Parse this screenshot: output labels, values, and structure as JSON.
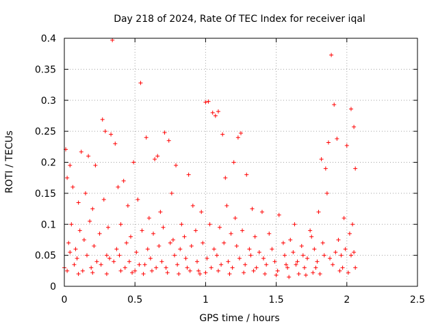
{
  "chart_data": {
    "type": "scatter",
    "title": "Day 218 of 2024, Rate Of TEC Index for receiver iqal",
    "xlabel": "GPS time / hours",
    "ylabel": "ROTI / TECUs",
    "xlim": [
      0,
      2.5
    ],
    "ylim": [
      0,
      0.4
    ],
    "xticks": [
      0,
      0.5,
      1,
      1.5,
      2,
      2.5
    ],
    "xtick_labels": [
      "0",
      "0.5",
      "1",
      "1.5",
      "2",
      "2.5"
    ],
    "yticks": [
      0,
      0.05,
      0.1,
      0.15,
      0.2,
      0.25,
      0.3,
      0.35,
      0.4
    ],
    "ytick_labels": [
      "0",
      "0.05",
      "0.1",
      "0.15",
      "0.2",
      "0.25",
      "0.3",
      "0.35",
      "0.4"
    ],
    "grid": true,
    "marker": "plus",
    "color": "#ff0000",
    "series": [
      {
        "name": "ROTI",
        "x": [
          0.34,
          0.54,
          1.0,
          1.02,
          1.05,
          1.07,
          1.09,
          1.89,
          1.91,
          2.03,
          0.27,
          0.29,
          0.33,
          0.36,
          0.58,
          0.66,
          0.71,
          0.74,
          1.12,
          1.23,
          1.25,
          1.87,
          1.93,
          2.05,
          0.01,
          0.04,
          0.12,
          0.17,
          0.22,
          0.42,
          0.49,
          0.64,
          0.79,
          0.88,
          1.14,
          1.2,
          1.29,
          1.82,
          1.85,
          2.0,
          2.06,
          0.02,
          0.06,
          0.1,
          0.15,
          0.2,
          0.28,
          0.38,
          0.45,
          0.52,
          0.6,
          0.68,
          0.76,
          0.83,
          0.91,
          0.97,
          1.15,
          1.21,
          1.33,
          1.4,
          1.52,
          1.63,
          1.74,
          1.8,
          1.86,
          1.98,
          2.04,
          0.05,
          0.11,
          0.18,
          0.25,
          0.31,
          0.4,
          0.47,
          0.55,
          0.63,
          0.7,
          0.77,
          0.85,
          0.93,
          1.03,
          1.1,
          1.18,
          1.26,
          1.35,
          1.45,
          1.55,
          1.6,
          1.68,
          1.75,
          1.83,
          1.94,
          2.02,
          0.03,
          0.08,
          0.14,
          0.21,
          0.3,
          0.37,
          0.44,
          0.51,
          0.59,
          0.67,
          0.75,
          0.82,
          0.9,
          0.98,
          1.06,
          1.13,
          1.22,
          1.31,
          1.38,
          1.47,
          1.56,
          1.62,
          1.69,
          1.77,
          1.84,
          1.92,
          1.99,
          2.05,
          0.04,
          0.09,
          0.16,
          0.23,
          0.32,
          0.39,
          0.46,
          0.53,
          0.61,
          0.69,
          0.78,
          0.86,
          0.94,
          1.01,
          1.08,
          1.16,
          1.24,
          1.32,
          1.41,
          1.49,
          1.57,
          1.65,
          1.72,
          1.79,
          1.88,
          1.96,
          2.03,
          0.0,
          0.07,
          0.13,
          0.19,
          0.26,
          0.35,
          0.43,
          0.5,
          0.57,
          0.65,
          0.72,
          0.8,
          0.87,
          0.95,
          1.04,
          1.11,
          1.19,
          1.28,
          1.36,
          1.43,
          1.51,
          1.58,
          1.64,
          1.7,
          1.78,
          1.9,
          1.97,
          2.06,
          0.02,
          0.1,
          0.2,
          0.3,
          0.4,
          0.48,
          0.56,
          0.62,
          0.73,
          0.81,
          0.89,
          0.96,
          1.0,
          1.09,
          1.17,
          1.27,
          1.34,
          1.42,
          1.5,
          1.59,
          1.66,
          1.71,
          1.76,
          1.81,
          1.95,
          2.01
        ],
        "y": [
          0.397,
          0.328,
          0.297,
          0.298,
          0.28,
          0.275,
          0.282,
          0.373,
          0.293,
          0.286,
          0.269,
          0.25,
          0.245,
          0.23,
          0.24,
          0.21,
          0.248,
          0.235,
          0.245,
          0.24,
          0.247,
          0.232,
          0.238,
          0.257,
          0.221,
          0.195,
          0.217,
          0.21,
          0.195,
          0.17,
          0.2,
          0.205,
          0.195,
          0.18,
          0.175,
          0.2,
          0.18,
          0.205,
          0.19,
          0.227,
          0.19,
          0.175,
          0.16,
          0.135,
          0.15,
          0.125,
          0.14,
          0.16,
          0.13,
          0.14,
          0.11,
          0.12,
          0.15,
          0.1,
          0.13,
          0.12,
          0.13,
          0.11,
          0.125,
          0.12,
          0.115,
          0.1,
          0.09,
          0.12,
          0.15,
          0.11,
          0.1,
          0.1,
          0.09,
          0.105,
          0.085,
          0.095,
          0.1,
          0.08,
          0.09,
          0.085,
          0.095,
          0.075,
          0.08,
          0.09,
          0.1,
          0.095,
          0.085,
          0.09,
          0.08,
          0.085,
          0.07,
          0.075,
          0.065,
          0.08,
          0.07,
          0.075,
          0.085,
          0.07,
          0.06,
          0.075,
          0.065,
          0.05,
          0.06,
          0.07,
          0.055,
          0.06,
          0.065,
          0.07,
          0.06,
          0.065,
          0.07,
          0.06,
          0.07,
          0.065,
          0.06,
          0.055,
          0.06,
          0.05,
          0.055,
          0.05,
          0.06,
          0.05,
          0.055,
          0.06,
          0.055,
          0.055,
          0.045,
          0.05,
          0.04,
          0.045,
          0.05,
          0.04,
          0.035,
          0.045,
          0.04,
          0.05,
          0.045,
          0.04,
          0.045,
          0.05,
          0.04,
          0.045,
          0.05,
          0.045,
          0.04,
          0.035,
          0.04,
          0.045,
          0.04,
          0.045,
          0.05,
          0.05,
          0.03,
          0.035,
          0.025,
          0.03,
          0.035,
          0.04,
          0.03,
          0.025,
          0.035,
          0.03,
          0.03,
          0.035,
          0.03,
          0.025,
          0.03,
          0.035,
          0.03,
          0.035,
          0.03,
          0.035,
          0.025,
          0.03,
          0.035,
          0.03,
          0.03,
          0.035,
          0.03,
          0.03,
          0.025,
          0.02,
          0.022,
          0.02,
          0.025,
          0.022,
          0.02,
          0.025,
          0.022,
          0.02,
          0.025,
          0.02,
          0.022,
          0.025,
          0.02,
          0.022,
          0.025,
          0.02,
          0.018,
          0.015,
          0.02,
          0.018,
          0.022,
          0.02,
          0.025,
          0.022
        ]
      }
    ]
  }
}
